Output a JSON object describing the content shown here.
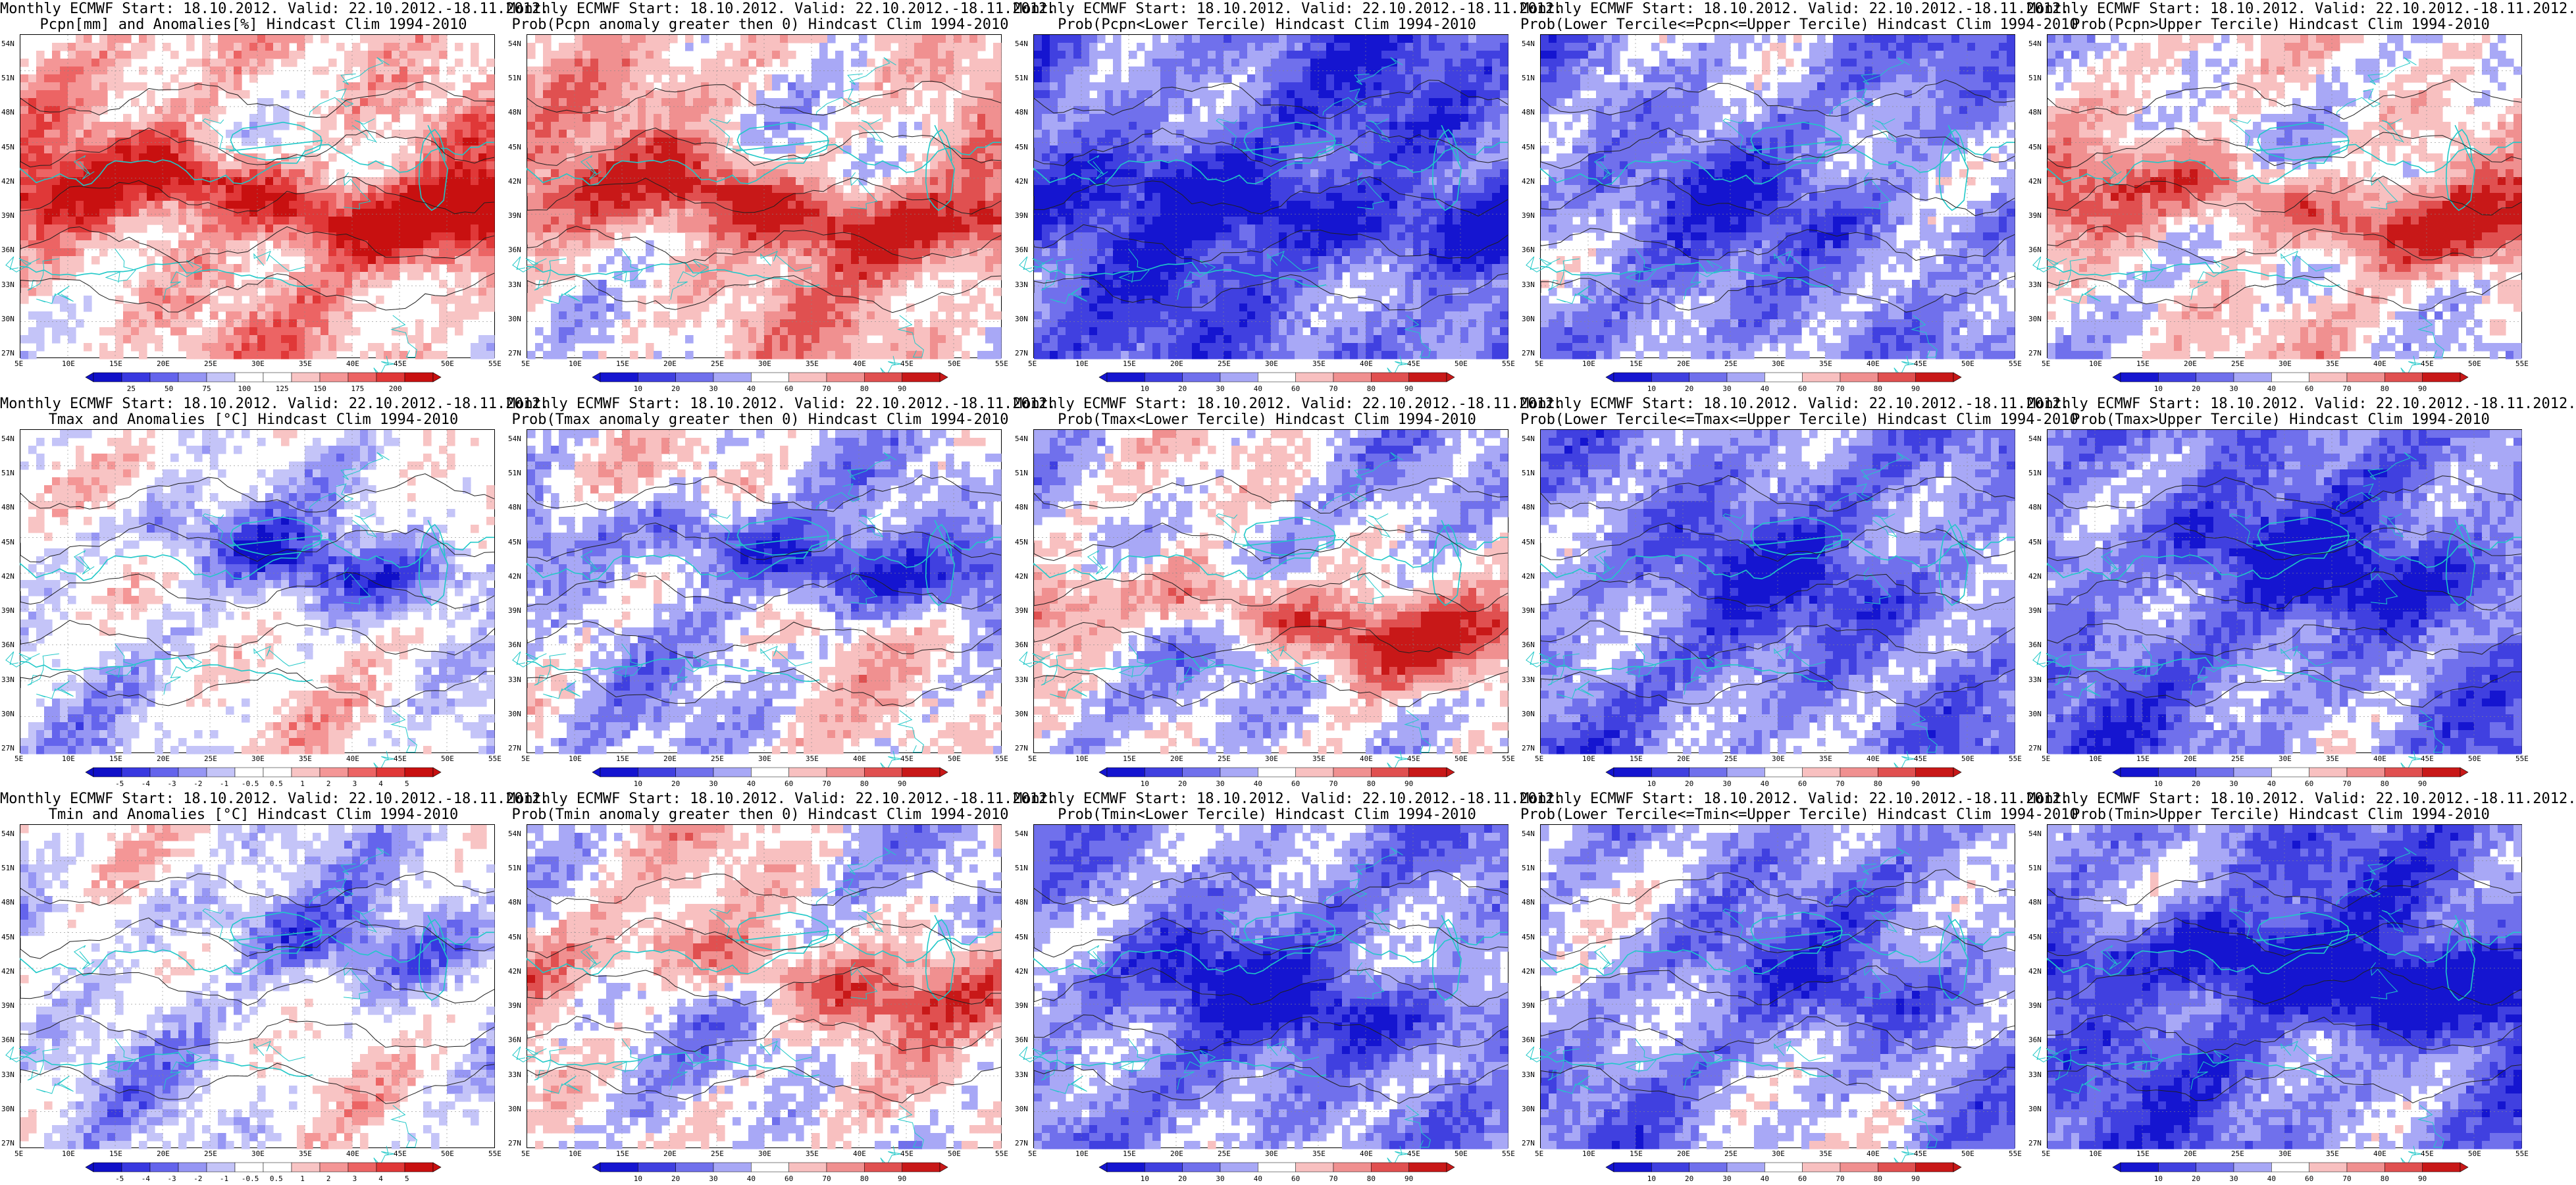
{
  "latitude_ticks": [
    "54N",
    "51N",
    "48N",
    "45N",
    "42N",
    "39N",
    "36N",
    "33N",
    "30N",
    "27N"
  ],
  "longitude_ticks": [
    "5E",
    "10E",
    "15E",
    "20E",
    "25E",
    "30E",
    "35E",
    "40E",
    "45E",
    "50E",
    "55E"
  ],
  "palettes": {
    "diverging": [
      "#1010c8",
      "#3838e0",
      "#6464ec",
      "#9696f4",
      "#c4c4f8",
      "#ffffff",
      "#ffffff",
      "#f8c4c4",
      "#f49696",
      "#ec6464",
      "#e03838",
      "#c81010"
    ],
    "prob": [
      "#1515d0",
      "#4040e0",
      "#7070ec",
      "#a8a8f6",
      "#ffffff",
      "#f8c0c0",
      "#f09090",
      "#e05050",
      "#c81818"
    ]
  },
  "panels": [
    {
      "row": 0,
      "col": 0,
      "title1": "Monthly ECMWF Start: 18.10.2012. Valid: 22.10.2012.-18.11.2012.",
      "title2": "Pcpn[mm] and Anomalies[%] Hindcast Clim 1994-2010",
      "palette": "diverging",
      "colorbar_labels": [
        "25",
        "50",
        "75",
        "100",
        "125",
        "150",
        "175",
        "200"
      ],
      "field": {
        "bias": 0.25,
        "band": [
          0.25,
          0.75,
          1.0
        ]
      }
    },
    {
      "row": 0,
      "col": 1,
      "title1": "Monthly ECMWF Start: 18.10.2012. Valid: 22.10.2012.-18.11.2012.",
      "title2": "Prob(Pcpn anomaly greater then 0) Hindcast Clim 1994-2010",
      "palette": "prob",
      "colorbar_labels": [
        "10",
        "20",
        "30",
        "40",
        "60",
        "70",
        "80",
        "90"
      ],
      "field": {
        "bias": 0.2,
        "band": [
          0.3,
          0.75,
          0.9
        ]
      }
    },
    {
      "row": 0,
      "col": 2,
      "title1": "Monthly ECMWF Start: 18.10.2012. Valid: 22.10.2012.-18.11.2012.",
      "title2": "Prob(Pcpn<Lower Tercile) Hindcast Clim 1994-2010",
      "palette": "prob",
      "colorbar_labels": [
        "10",
        "20",
        "30",
        "40",
        "60",
        "70",
        "80",
        "90"
      ],
      "field": {
        "bias": -0.55,
        "band": [
          0.3,
          0.75,
          -0.6
        ]
      }
    },
    {
      "row": 0,
      "col": 3,
      "title1": "Monthly ECMWF Start: 18.10.2012. Valid: 22.10.2012.-18.11.2012.",
      "title2": "Prob(Lower Tercile<=Pcpn<=Upper Tercile) Hindcast Clim 1994-2010",
      "palette": "prob",
      "colorbar_labels": [
        "10",
        "20",
        "30",
        "40",
        "60",
        "70",
        "80",
        "90"
      ],
      "field": {
        "bias": -0.35,
        "band": [
          0.3,
          0.75,
          -0.3
        ]
      }
    },
    {
      "row": 0,
      "col": 4,
      "title1": "Monthly ECMWF Start: 18.10.2012. Valid: 22.10.2012.-18.11.2012.",
      "title2": "Prob(Pcpn>Upper Tercile) Hindcast Clim 1994-2010",
      "palette": "prob",
      "colorbar_labels": [
        "10",
        "20",
        "30",
        "40",
        "60",
        "70",
        "80",
        "90"
      ],
      "field": {
        "bias": 0.05,
        "band": [
          0.3,
          0.75,
          0.9
        ]
      }
    },
    {
      "row": 1,
      "col": 0,
      "title1": "Monthly ECMWF Start: 18.10.2012. Valid: 22.10.2012.-18.11.2012.",
      "title2": "Tmax and Anomalies [°C] Hindcast Clim 1994-2010",
      "palette": "diverging",
      "colorbar_labels": [
        "-5",
        "-4",
        "-3",
        "-2",
        "-1",
        "-0.5",
        "0.5",
        "1",
        "2",
        "3",
        "4",
        "5"
      ],
      "field": {
        "bias": -0.05,
        "band": [
          0.15,
          0.6,
          -0.6
        ]
      }
    },
    {
      "row": 1,
      "col": 1,
      "title1": "Monthly ECMWF Start: 18.10.2012. Valid: 22.10.2012.-18.11.2012.",
      "title2": "Prob(Tmax anomaly greater then 0) Hindcast Clim 1994-2010",
      "palette": "prob",
      "colorbar_labels": [
        "10",
        "20",
        "30",
        "40",
        "60",
        "70",
        "80",
        "90"
      ],
      "field": {
        "bias": -0.05,
        "band": [
          0.15,
          0.6,
          -0.8
        ]
      }
    },
    {
      "row": 1,
      "col": 2,
      "title1": "Monthly ECMWF Start: 18.10.2012. Valid: 22.10.2012.-18.11.2012.",
      "title2": "Prob(Tmax<Lower Tercile) Hindcast Clim 1994-2010",
      "palette": "prob",
      "colorbar_labels": [
        "10",
        "20",
        "30",
        "40",
        "60",
        "70",
        "80",
        "90"
      ],
      "field": {
        "bias": -0.1,
        "band": [
          0.6,
          0.55,
          0.9
        ]
      }
    },
    {
      "row": 1,
      "col": 3,
      "title1": "Monthly ECMWF Start: 18.10.2012. Valid: 22.10.2012.-18.11.2012.",
      "title2": "Prob(Lower Tercile<=Tmax<=Upper Tercile) Hindcast Clim 1994-2010",
      "palette": "prob",
      "colorbar_labels": [
        "10",
        "20",
        "30",
        "40",
        "60",
        "70",
        "80",
        "90"
      ],
      "field": {
        "bias": -0.4,
        "band": [
          0.3,
          0.6,
          -0.3
        ]
      }
    },
    {
      "row": 1,
      "col": 4,
      "title1": "Monthly ECMWF Start: 18.10.2012. Valid: 22.10.2012.-18.11.2012.",
      "title2": "Prob(Tmax>Upper Tercile) Hindcast Clim 1994-2010",
      "palette": "prob",
      "colorbar_labels": [
        "10",
        "20",
        "30",
        "40",
        "60",
        "70",
        "80",
        "90"
      ],
      "field": {
        "bias": -0.45,
        "band": [
          0.2,
          0.6,
          -0.5
        ]
      }
    },
    {
      "row": 2,
      "col": 0,
      "title1": "Monthly ECMWF Start: 18.10.2012. Valid: 22.10.2012.-18.11.2012.",
      "title2": "Tmin and Anomalies [°C] Hindcast Clim 1994-2010",
      "palette": "diverging",
      "colorbar_labels": [
        "-5",
        "-4",
        "-3",
        "-2",
        "-1",
        "-0.5",
        "0.5",
        "1",
        "2",
        "3",
        "4",
        "5"
      ],
      "field": {
        "bias": -0.1,
        "band": [
          0.15,
          0.5,
          -0.4
        ]
      }
    },
    {
      "row": 2,
      "col": 1,
      "title1": "Monthly ECMWF Start: 18.10.2012. Valid: 22.10.2012.-18.11.2012.",
      "title2": "Prob(Tmin anomaly greater then 0) Hindcast Clim 1994-2010",
      "palette": "prob",
      "colorbar_labels": [
        "10",
        "20",
        "30",
        "40",
        "60",
        "70",
        "80",
        "90"
      ],
      "field": {
        "bias": 0.0,
        "band": [
          0.2,
          0.7,
          0.6
        ]
      }
    },
    {
      "row": 2,
      "col": 2,
      "title1": "Monthly ECMWF Start: 18.10.2012. Valid: 22.10.2012.-18.11.2012.",
      "title2": "Prob(Tmin<Lower Tercile) Hindcast Clim 1994-2010",
      "palette": "prob",
      "colorbar_labels": [
        "10",
        "20",
        "30",
        "40",
        "60",
        "70",
        "80",
        "90"
      ],
      "field": {
        "bias": -0.35,
        "band": [
          0.2,
          0.85,
          -0.6
        ]
      }
    },
    {
      "row": 2,
      "col": 3,
      "title1": "Monthly ECMWF Start: 18.10.2012. Valid: 22.10.2012.-18.11.2012.",
      "title2": "Prob(Lower Tercile<=Tmin<=Upper Tercile) Hindcast Clim 1994-2010",
      "palette": "prob",
      "colorbar_labels": [
        "10",
        "20",
        "30",
        "40",
        "60",
        "70",
        "80",
        "90"
      ],
      "field": {
        "bias": -0.3,
        "band": [
          0.3,
          0.6,
          -0.3
        ]
      }
    },
    {
      "row": 2,
      "col": 4,
      "title1": "Monthly ECMWF Start: 18.10.2012. Valid: 22.10.2012.-18.11.2012.",
      "title2": "Prob(Tmin>Upper Tercile) Hindcast Clim 1994-2010",
      "palette": "prob",
      "colorbar_labels": [
        "10",
        "20",
        "30",
        "40",
        "60",
        "70",
        "80",
        "90"
      ],
      "field": {
        "bias": -0.5,
        "band": [
          0.05,
          0.85,
          -0.9
        ]
      }
    }
  ]
}
